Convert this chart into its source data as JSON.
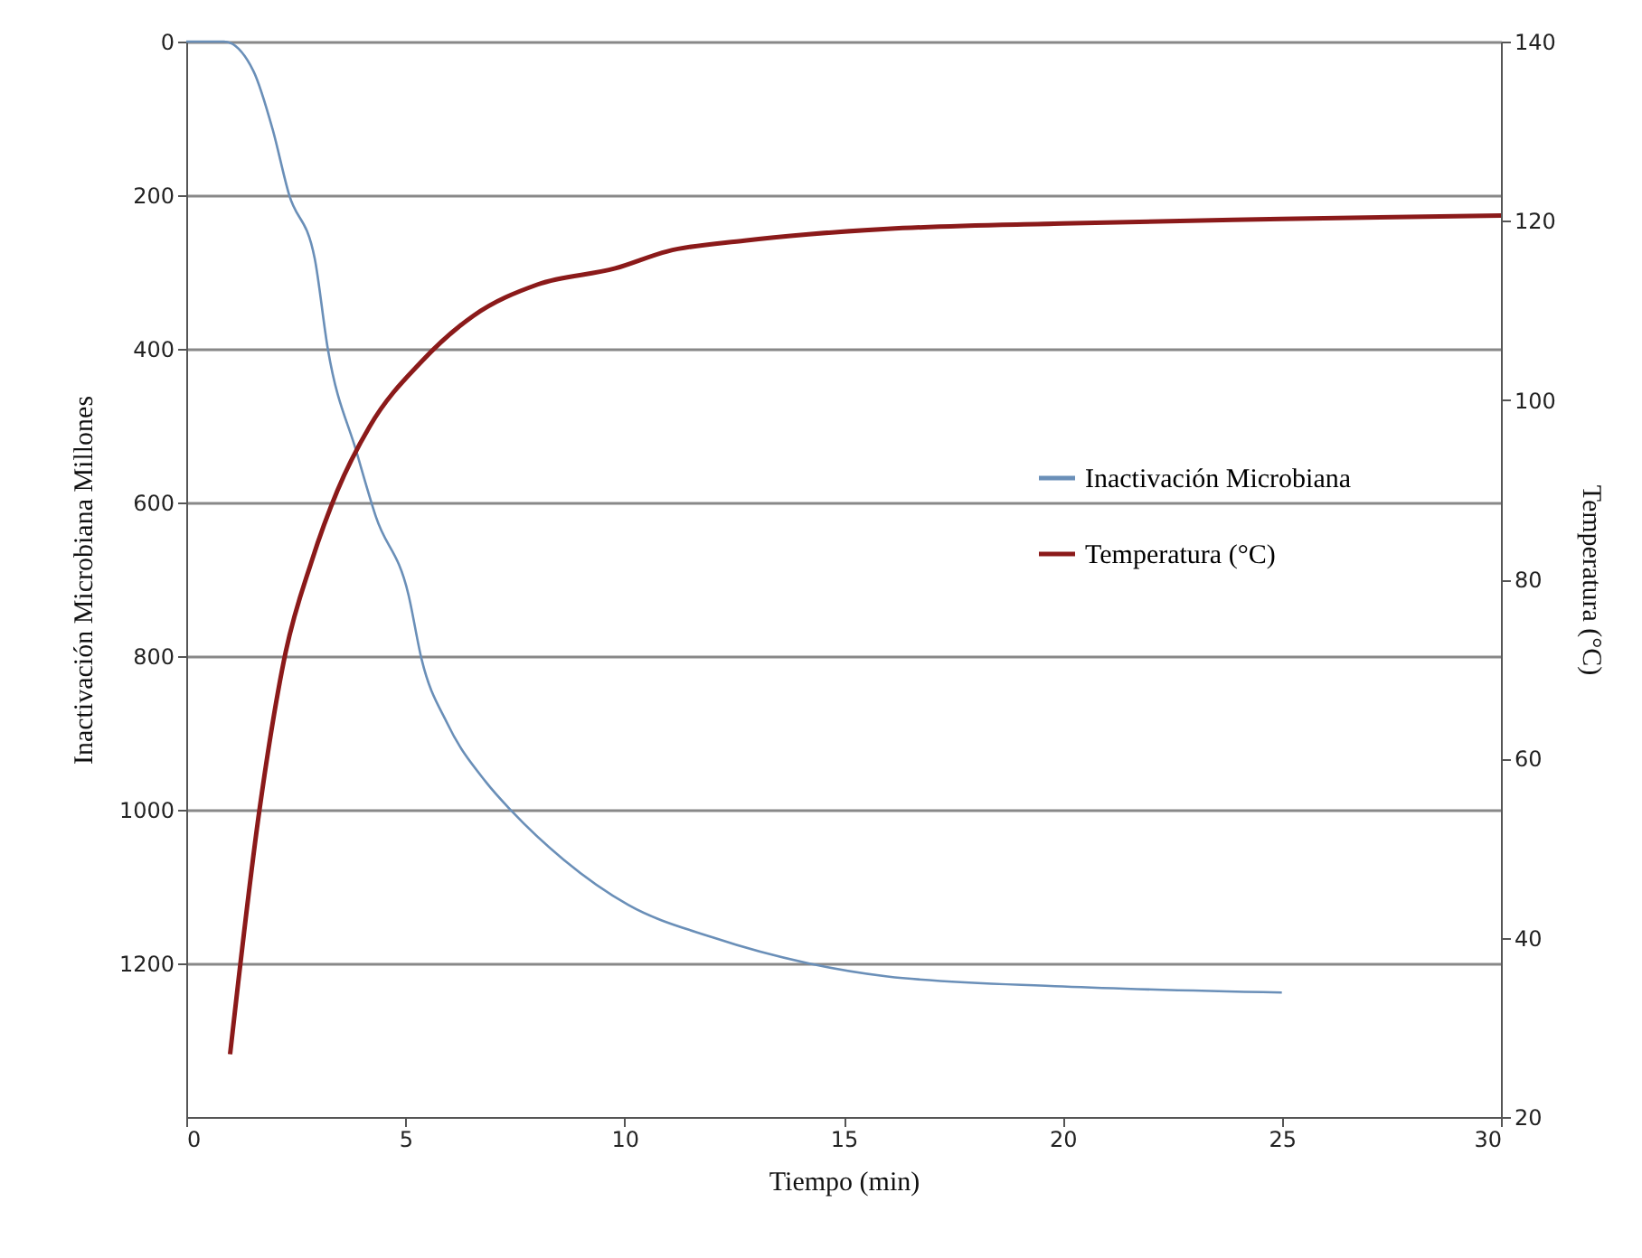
{
  "chart_data": {
    "type": "line",
    "xlabel": "Tiempo  (min)",
    "ylabel": "Inactivación  Microbiana   Millones",
    "y2label": "Temperatura  (°C)",
    "xlim": [
      0,
      30
    ],
    "xticks": [
      0,
      5,
      10,
      15,
      20,
      25,
      30
    ],
    "ylim": [
      1400,
      0
    ],
    "yticks": [
      0,
      200,
      400,
      600,
      800,
      1000,
      1200
    ],
    "y2lim": [
      20,
      140
    ],
    "y2ticks": [
      20,
      40,
      60,
      80,
      100,
      120,
      140
    ],
    "grid": "y",
    "legend": "right",
    "line_style": "solid",
    "marker": "none",
    "series": [
      {
        "name": "Inactivación Microbiana",
        "color": "#6a8fb8",
        "x": [
          0,
          0.86,
          1.53,
          1.97,
          2.34,
          2.93,
          3.23,
          3.89,
          4.33,
          5.07,
          5.37,
          5.96,
          6.84,
          7.43,
          8.61,
          10.09,
          12.0,
          14.2,
          16.0,
          20,
          25
        ],
        "values": [
          0,
          0,
          38,
          114,
          198,
          282,
          400,
          535,
          619,
          720,
          804,
          888,
          964,
          1002,
          1065,
          1124,
          1166,
          1200,
          1217,
          1230,
          1238
        ]
      },
      {
        "name": "Temperatura  (°C)",
        "color": "#8b1a1a",
        "axis": "y2",
        "x": [
          1.0,
          1.68,
          2.27,
          2.86,
          3.45,
          4.19,
          5.37,
          6.55,
          8.02,
          9.79,
          10.98,
          12.74,
          14.2,
          16.0,
          20,
          25,
          30
        ],
        "values": [
          27,
          54.6,
          71.9,
          82.0,
          89.9,
          97.1,
          104.3,
          109.4,
          112.9,
          114.7,
          116.6,
          117.8,
          118.5,
          119.1,
          119.7,
          120.2,
          120.6
        ]
      }
    ]
  }
}
